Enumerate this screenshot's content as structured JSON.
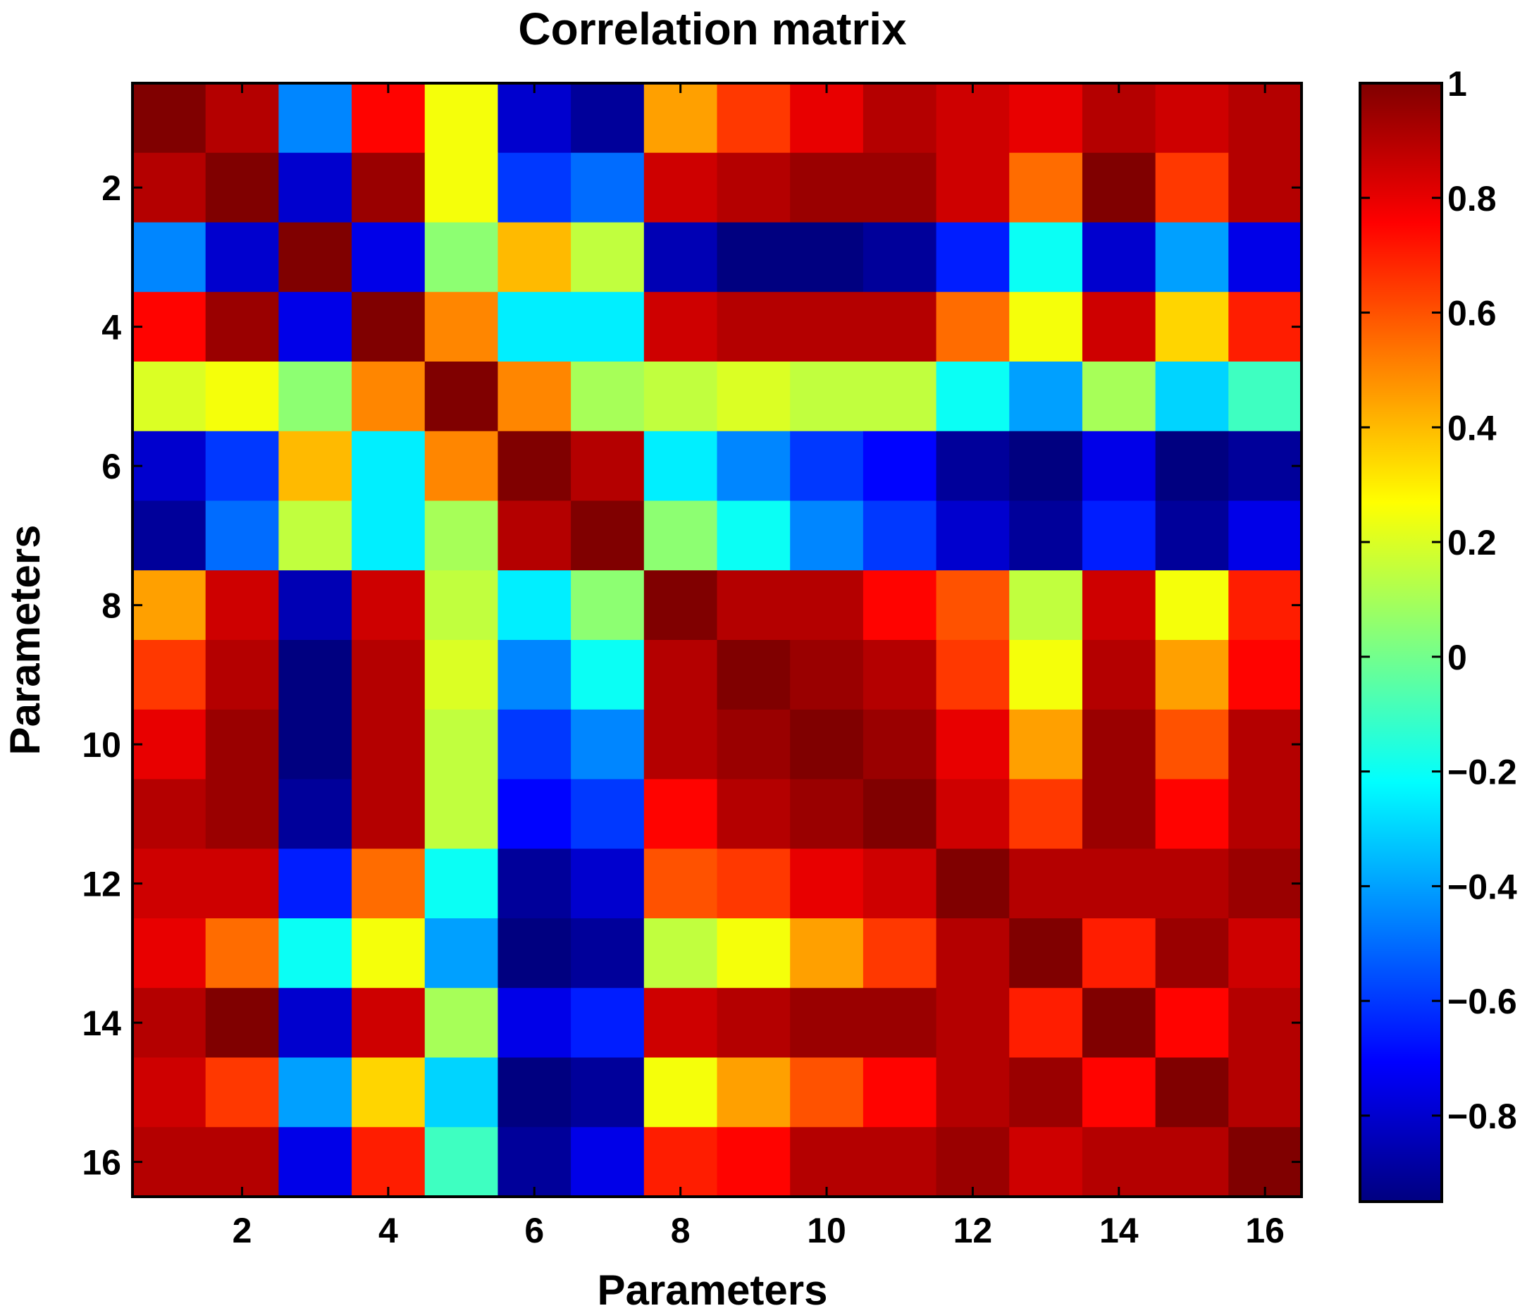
{
  "chart_data": {
    "type": "heatmap",
    "title": "Correlation matrix",
    "xlabel": "Parameters",
    "ylabel": "Parameters",
    "x_ticks": [
      "2",
      "4",
      "6",
      "8",
      "10",
      "12",
      "14",
      "16"
    ],
    "y_ticks": [
      "2",
      "4",
      "6",
      "8",
      "10",
      "12",
      "14",
      "16"
    ],
    "colorbar": {
      "range": [
        -0.95,
        1
      ],
      "ticks": [
        "-0.8",
        "-0.6",
        "-0.4",
        "-0.2",
        "0",
        "0.2",
        "0.4",
        "0.6",
        "0.8",
        "1"
      ],
      "colormap": "jet"
    },
    "matrix": [
      [
        1.0,
        0.9,
        -0.45,
        0.75,
        0.25,
        -0.8,
        -0.9,
        0.45,
        0.65,
        0.8,
        0.9,
        0.85,
        0.8,
        0.9,
        0.85,
        0.9
      ],
      [
        0.9,
        1.0,
        -0.8,
        0.95,
        0.25,
        -0.6,
        -0.5,
        0.85,
        0.9,
        0.95,
        0.95,
        0.85,
        0.55,
        1.0,
        0.65,
        0.9
      ],
      [
        -0.45,
        -0.8,
        1.0,
        -0.75,
        0.05,
        0.4,
        0.15,
        -0.85,
        -0.95,
        -0.95,
        -0.9,
        -0.65,
        -0.2,
        -0.8,
        -0.4,
        -0.75
      ],
      [
        0.75,
        0.95,
        -0.75,
        1.0,
        0.5,
        -0.25,
        -0.25,
        0.85,
        0.9,
        0.9,
        0.9,
        0.55,
        0.25,
        0.85,
        0.35,
        0.7
      ],
      [
        0.2,
        0.25,
        0.05,
        0.5,
        1.0,
        0.5,
        0.1,
        0.15,
        0.2,
        0.15,
        0.15,
        -0.2,
        -0.4,
        0.1,
        -0.3,
        -0.1
      ],
      [
        -0.8,
        -0.6,
        0.4,
        -0.25,
        0.5,
        1.0,
        0.9,
        -0.25,
        -0.45,
        -0.6,
        -0.7,
        -0.9,
        -0.95,
        -0.75,
        -0.95,
        -0.9
      ],
      [
        -0.9,
        -0.5,
        0.15,
        -0.25,
        0.1,
        0.9,
        1.0,
        0.05,
        -0.2,
        -0.45,
        -0.6,
        -0.8,
        -0.9,
        -0.65,
        -0.9,
        -0.75
      ],
      [
        0.45,
        0.85,
        -0.85,
        0.85,
        0.15,
        -0.25,
        0.05,
        1.0,
        0.9,
        0.9,
        0.75,
        0.6,
        0.15,
        0.85,
        0.25,
        0.7
      ],
      [
        0.65,
        0.9,
        -0.95,
        0.9,
        0.2,
        -0.45,
        -0.2,
        0.9,
        1.0,
        0.95,
        0.9,
        0.65,
        0.25,
        0.9,
        0.45,
        0.75
      ],
      [
        0.8,
        0.95,
        -0.95,
        0.9,
        0.15,
        -0.6,
        -0.45,
        0.9,
        0.95,
        1.0,
        0.95,
        0.8,
        0.45,
        0.95,
        0.6,
        0.9
      ],
      [
        0.9,
        0.95,
        -0.9,
        0.9,
        0.15,
        -0.7,
        -0.6,
        0.75,
        0.9,
        0.95,
        1.0,
        0.85,
        0.65,
        0.95,
        0.75,
        0.9
      ],
      [
        0.85,
        0.85,
        -0.65,
        0.55,
        -0.2,
        -0.9,
        -0.8,
        0.6,
        0.65,
        0.8,
        0.85,
        1.0,
        0.9,
        0.9,
        0.9,
        0.95
      ],
      [
        0.8,
        0.55,
        -0.2,
        0.25,
        -0.4,
        -0.95,
        -0.9,
        0.15,
        0.25,
        0.45,
        0.65,
        0.9,
        1.0,
        0.7,
        0.95,
        0.85
      ],
      [
        0.9,
        1.0,
        -0.8,
        0.85,
        0.1,
        -0.75,
        -0.65,
        0.85,
        0.9,
        0.95,
        0.95,
        0.9,
        0.7,
        1.0,
        0.75,
        0.9
      ],
      [
        0.85,
        0.65,
        -0.4,
        0.35,
        -0.3,
        -0.95,
        -0.9,
        0.25,
        0.45,
        0.6,
        0.75,
        0.9,
        0.95,
        0.75,
        1.0,
        0.9
      ],
      [
        0.9,
        0.9,
        -0.75,
        0.7,
        -0.1,
        -0.9,
        -0.75,
        0.7,
        0.75,
        0.9,
        0.9,
        0.95,
        0.85,
        0.9,
        0.9,
        1.0
      ]
    ]
  }
}
